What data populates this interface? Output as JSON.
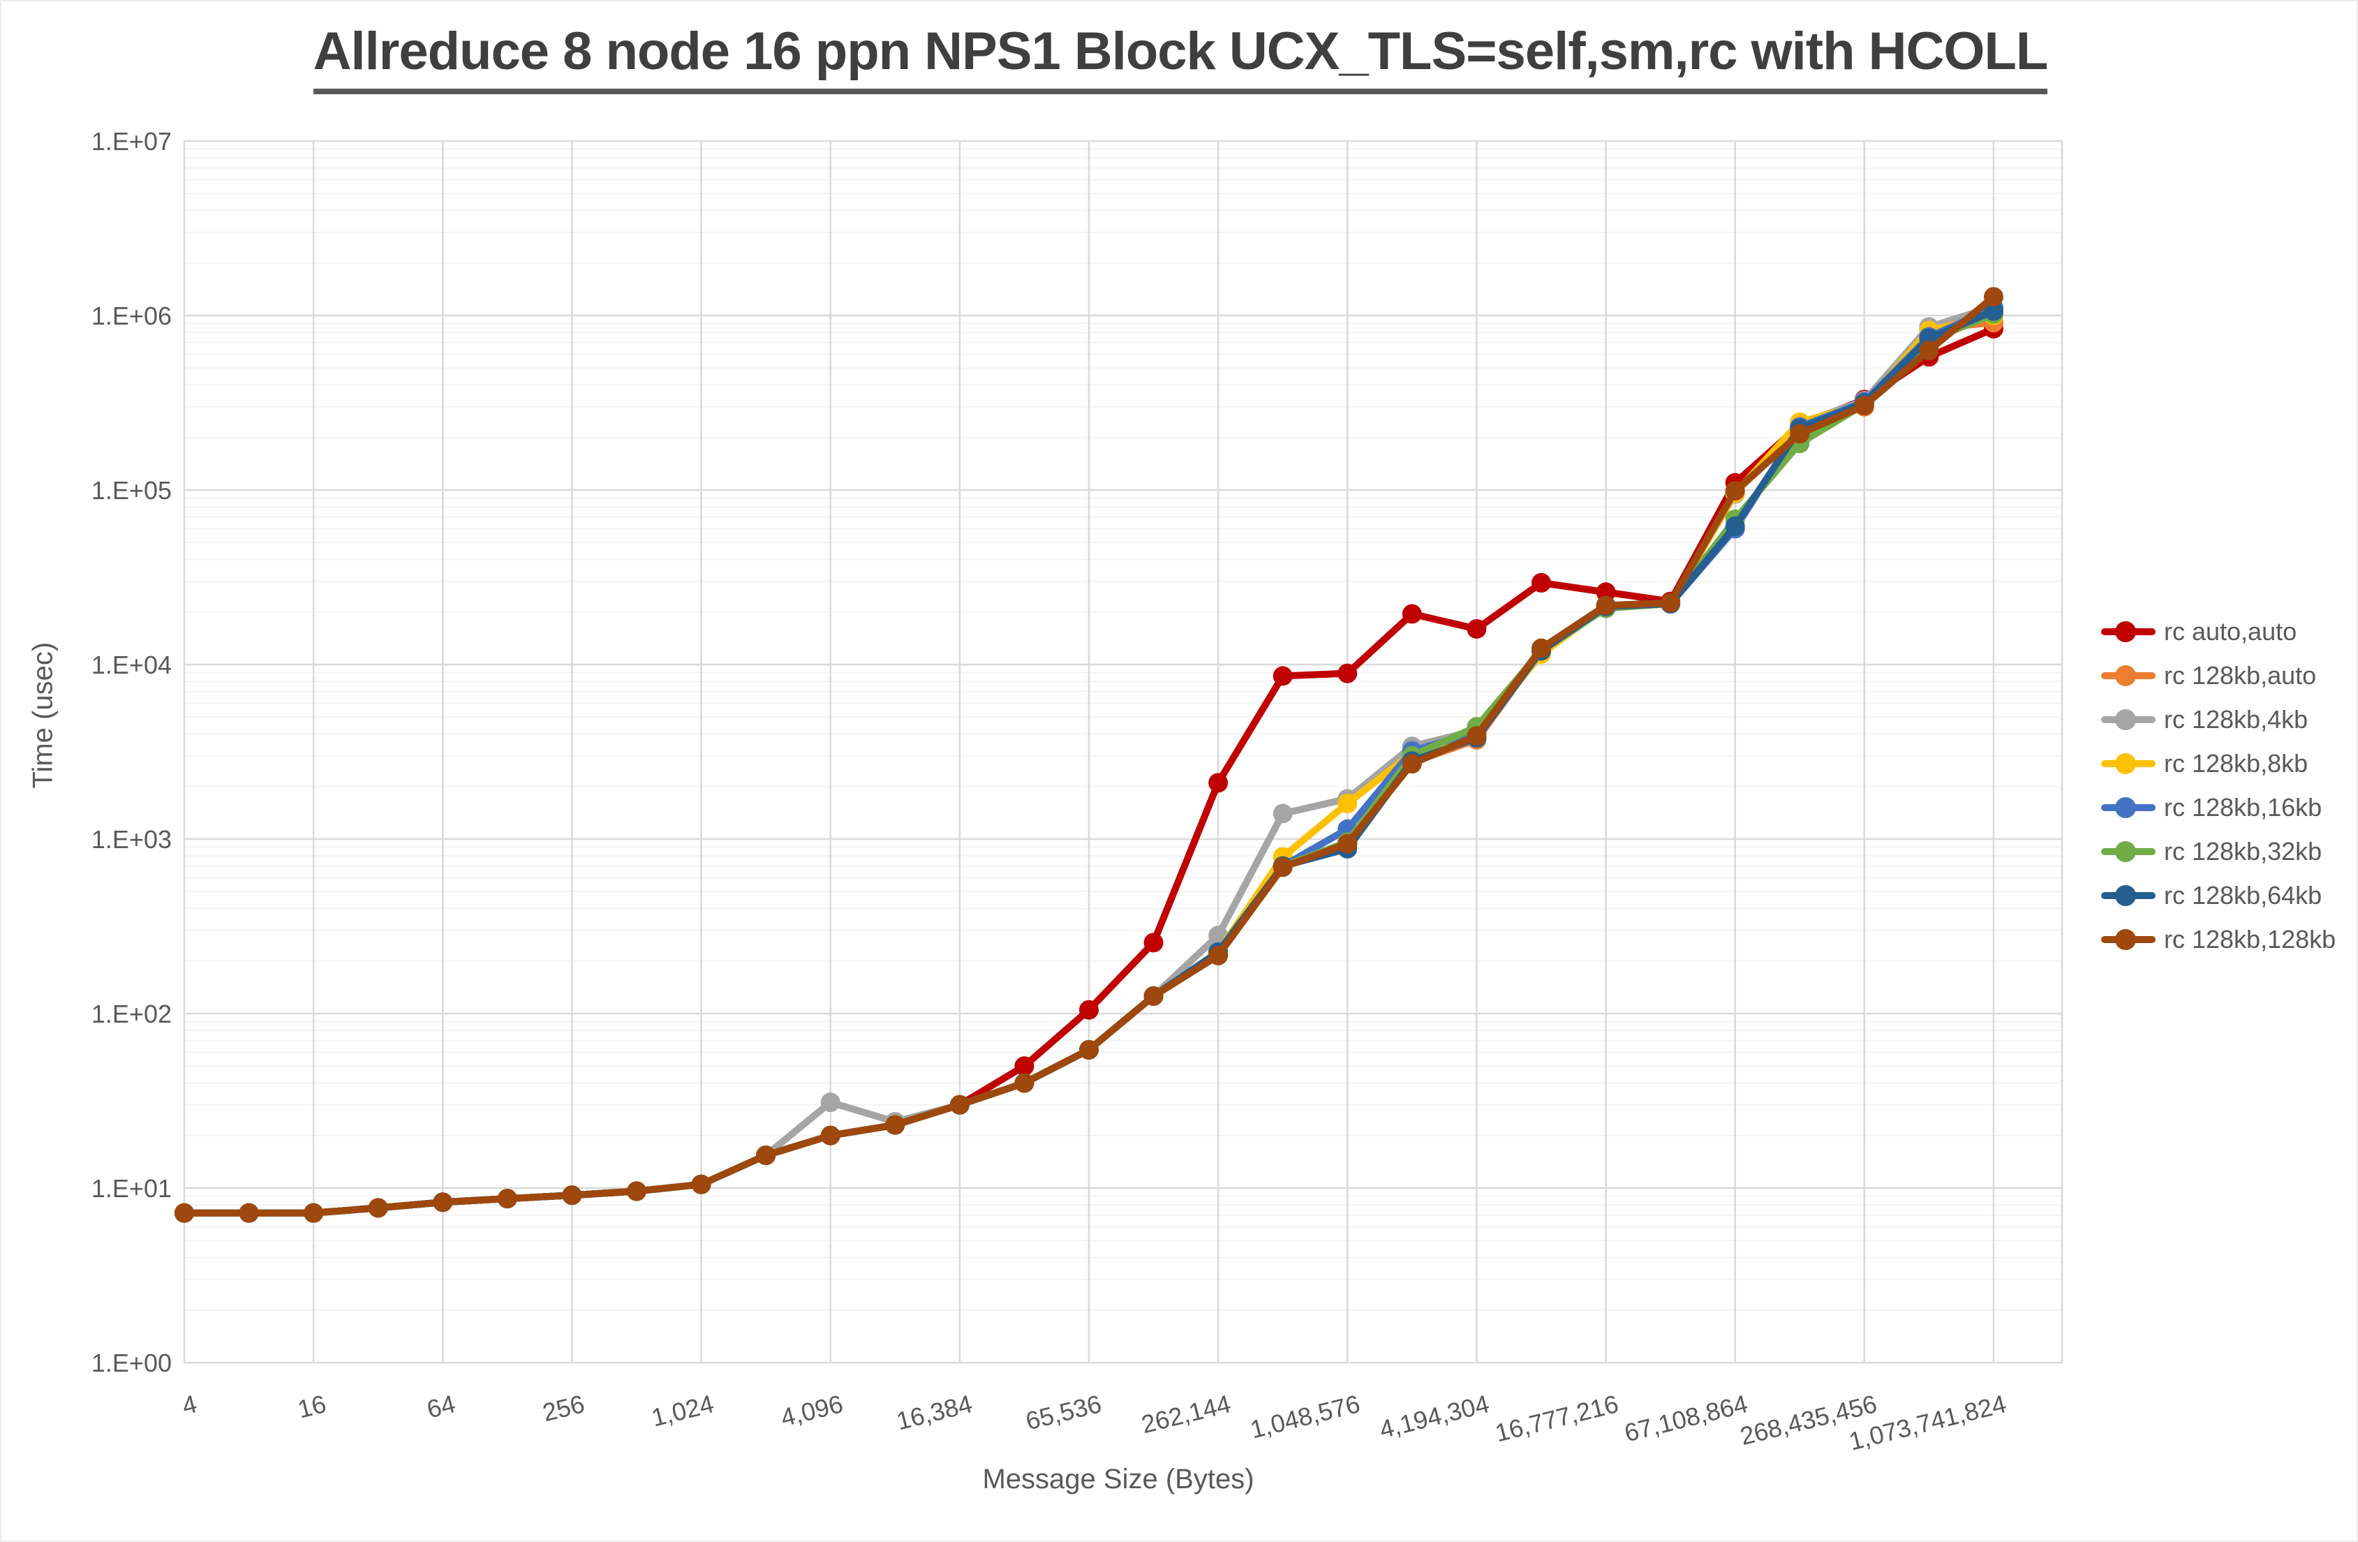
{
  "chart_data": {
    "type": "line",
    "title": "Allreduce 8 node 16 ppn NPS1 Block UCX_TLS=self,sm,rc with HCOLL",
    "xlabel": "Message Size (Bytes)",
    "ylabel": "Time (usec)",
    "x_scale": "log2",
    "y_scale": "log10",
    "ylim": [
      1,
      10000000
    ],
    "grid": "major-and-minor",
    "legend_position": "right",
    "y_tick_labels": [
      "1.E+00",
      "1.E+01",
      "1.E+02",
      "1.E+03",
      "1.E+04",
      "1.E+05",
      "1.E+06",
      "1.E+07"
    ],
    "x_tick_values": [
      4,
      16,
      64,
      256,
      1024,
      4096,
      16384,
      65536,
      262144,
      1048576,
      4194304,
      16777216,
      67108864,
      268435456,
      1073741824
    ],
    "x_tick_labels": [
      "4",
      "16",
      "64",
      "256",
      "1,024",
      "4,096",
      "16,384",
      "65,536",
      "262,144",
      "1,048,576",
      "4,194,304",
      "16,777,216",
      "67,108,864",
      "268,435,456",
      "1,073,741,824"
    ],
    "x": [
      4,
      8,
      16,
      32,
      64,
      128,
      256,
      512,
      1024,
      2048,
      4096,
      8192,
      16384,
      32768,
      65536,
      131072,
      262144,
      524288,
      1048576,
      2097152,
      4194304,
      8388608,
      16777216,
      33554432,
      67108864,
      134217728,
      268435456,
      536870912,
      1073741824
    ],
    "series": [
      {
        "name": "rc auto,auto",
        "color": "#C00000",
        "values": [
          7.2,
          7.2,
          7.2,
          7.7,
          8.3,
          8.7,
          9.1,
          9.6,
          10.5,
          15.4,
          20,
          23,
          30,
          50,
          105,
          255,
          2100,
          8600,
          8900,
          19500,
          16000,
          29400,
          26000,
          23000,
          110000,
          235000,
          330000,
          580000,
          840000
        ]
      },
      {
        "name": "rc 128kb,auto",
        "color": "#ED7D31",
        "values": [
          7.2,
          7.2,
          7.2,
          7.7,
          8.3,
          8.7,
          9.1,
          9.6,
          10.5,
          15.4,
          20,
          23,
          30,
          40,
          62,
          126,
          225,
          700,
          930,
          2750,
          3700,
          12000,
          21500,
          22300,
          97000,
          215000,
          300000,
          840000,
          910000
        ]
      },
      {
        "name": "rc 128kb,4kb",
        "color": "#A5A5A5",
        "values": [
          7.2,
          7.2,
          7.2,
          7.7,
          8.3,
          8.7,
          9.1,
          9.6,
          10.5,
          15.4,
          31,
          24,
          30,
          40,
          62,
          126,
          280,
          1400,
          1700,
          3400,
          4200,
          12000,
          21500,
          22300,
          95000,
          240000,
          325000,
          860000,
          1120000
        ]
      },
      {
        "name": "rc 128kb,8kb",
        "color": "#FFC000",
        "values": [
          7.2,
          7.2,
          7.2,
          7.7,
          8.3,
          8.7,
          9.1,
          9.6,
          10.5,
          15.4,
          20,
          23,
          30,
          40,
          62,
          126,
          225,
          790,
          1600,
          3100,
          4000,
          11500,
          21500,
          22300,
          96000,
          245000,
          310000,
          820000,
          1000000
        ]
      },
      {
        "name": "rc 128kb,16kb",
        "color": "#4472C4",
        "values": [
          7.2,
          7.2,
          7.2,
          7.7,
          8.3,
          8.7,
          9.1,
          9.6,
          10.5,
          15.4,
          20,
          23,
          30,
          40,
          62,
          126,
          225,
          700,
          1140,
          3200,
          4100,
          12000,
          21500,
          22300,
          60000,
          230000,
          320000,
          755000,
          1100000
        ]
      },
      {
        "name": "rc 128kb,32kb",
        "color": "#70AD47",
        "values": [
          7.2,
          7.2,
          7.2,
          7.7,
          8.3,
          8.7,
          9.1,
          9.6,
          10.5,
          15.4,
          20,
          23,
          30,
          40,
          62,
          126,
          225,
          700,
          960,
          3000,
          4400,
          12000,
          21000,
          22300,
          68000,
          185000,
          310000,
          720000,
          1020000
        ]
      },
      {
        "name": "rc 128kb,64kb",
        "color": "#255E91",
        "values": [
          7.2,
          7.2,
          7.2,
          7.7,
          8.3,
          8.7,
          9.1,
          9.6,
          10.5,
          15.4,
          20,
          23,
          30,
          40,
          62,
          126,
          225,
          700,
          880,
          2800,
          3800,
          12000,
          21500,
          22300,
          62000,
          225000,
          315000,
          740000,
          1060000
        ]
      },
      {
        "name": "rc 128kb,128kb",
        "color": "#9E480E",
        "values": [
          7.2,
          7.2,
          7.2,
          7.7,
          8.3,
          8.7,
          9.1,
          9.6,
          10.5,
          15.4,
          20,
          23,
          30,
          40,
          62,
          126,
          215,
          690,
          940,
          2700,
          3900,
          12400,
          21800,
          22600,
          99000,
          210000,
          305000,
          630000,
          1280000
        ]
      }
    ],
    "style": {
      "title_color": "#3f3f3f",
      "axis_text_color": "#595959",
      "grid_major_color": "#D9D9D9",
      "grid_minor_color": "#F2F2F2"
    }
  }
}
